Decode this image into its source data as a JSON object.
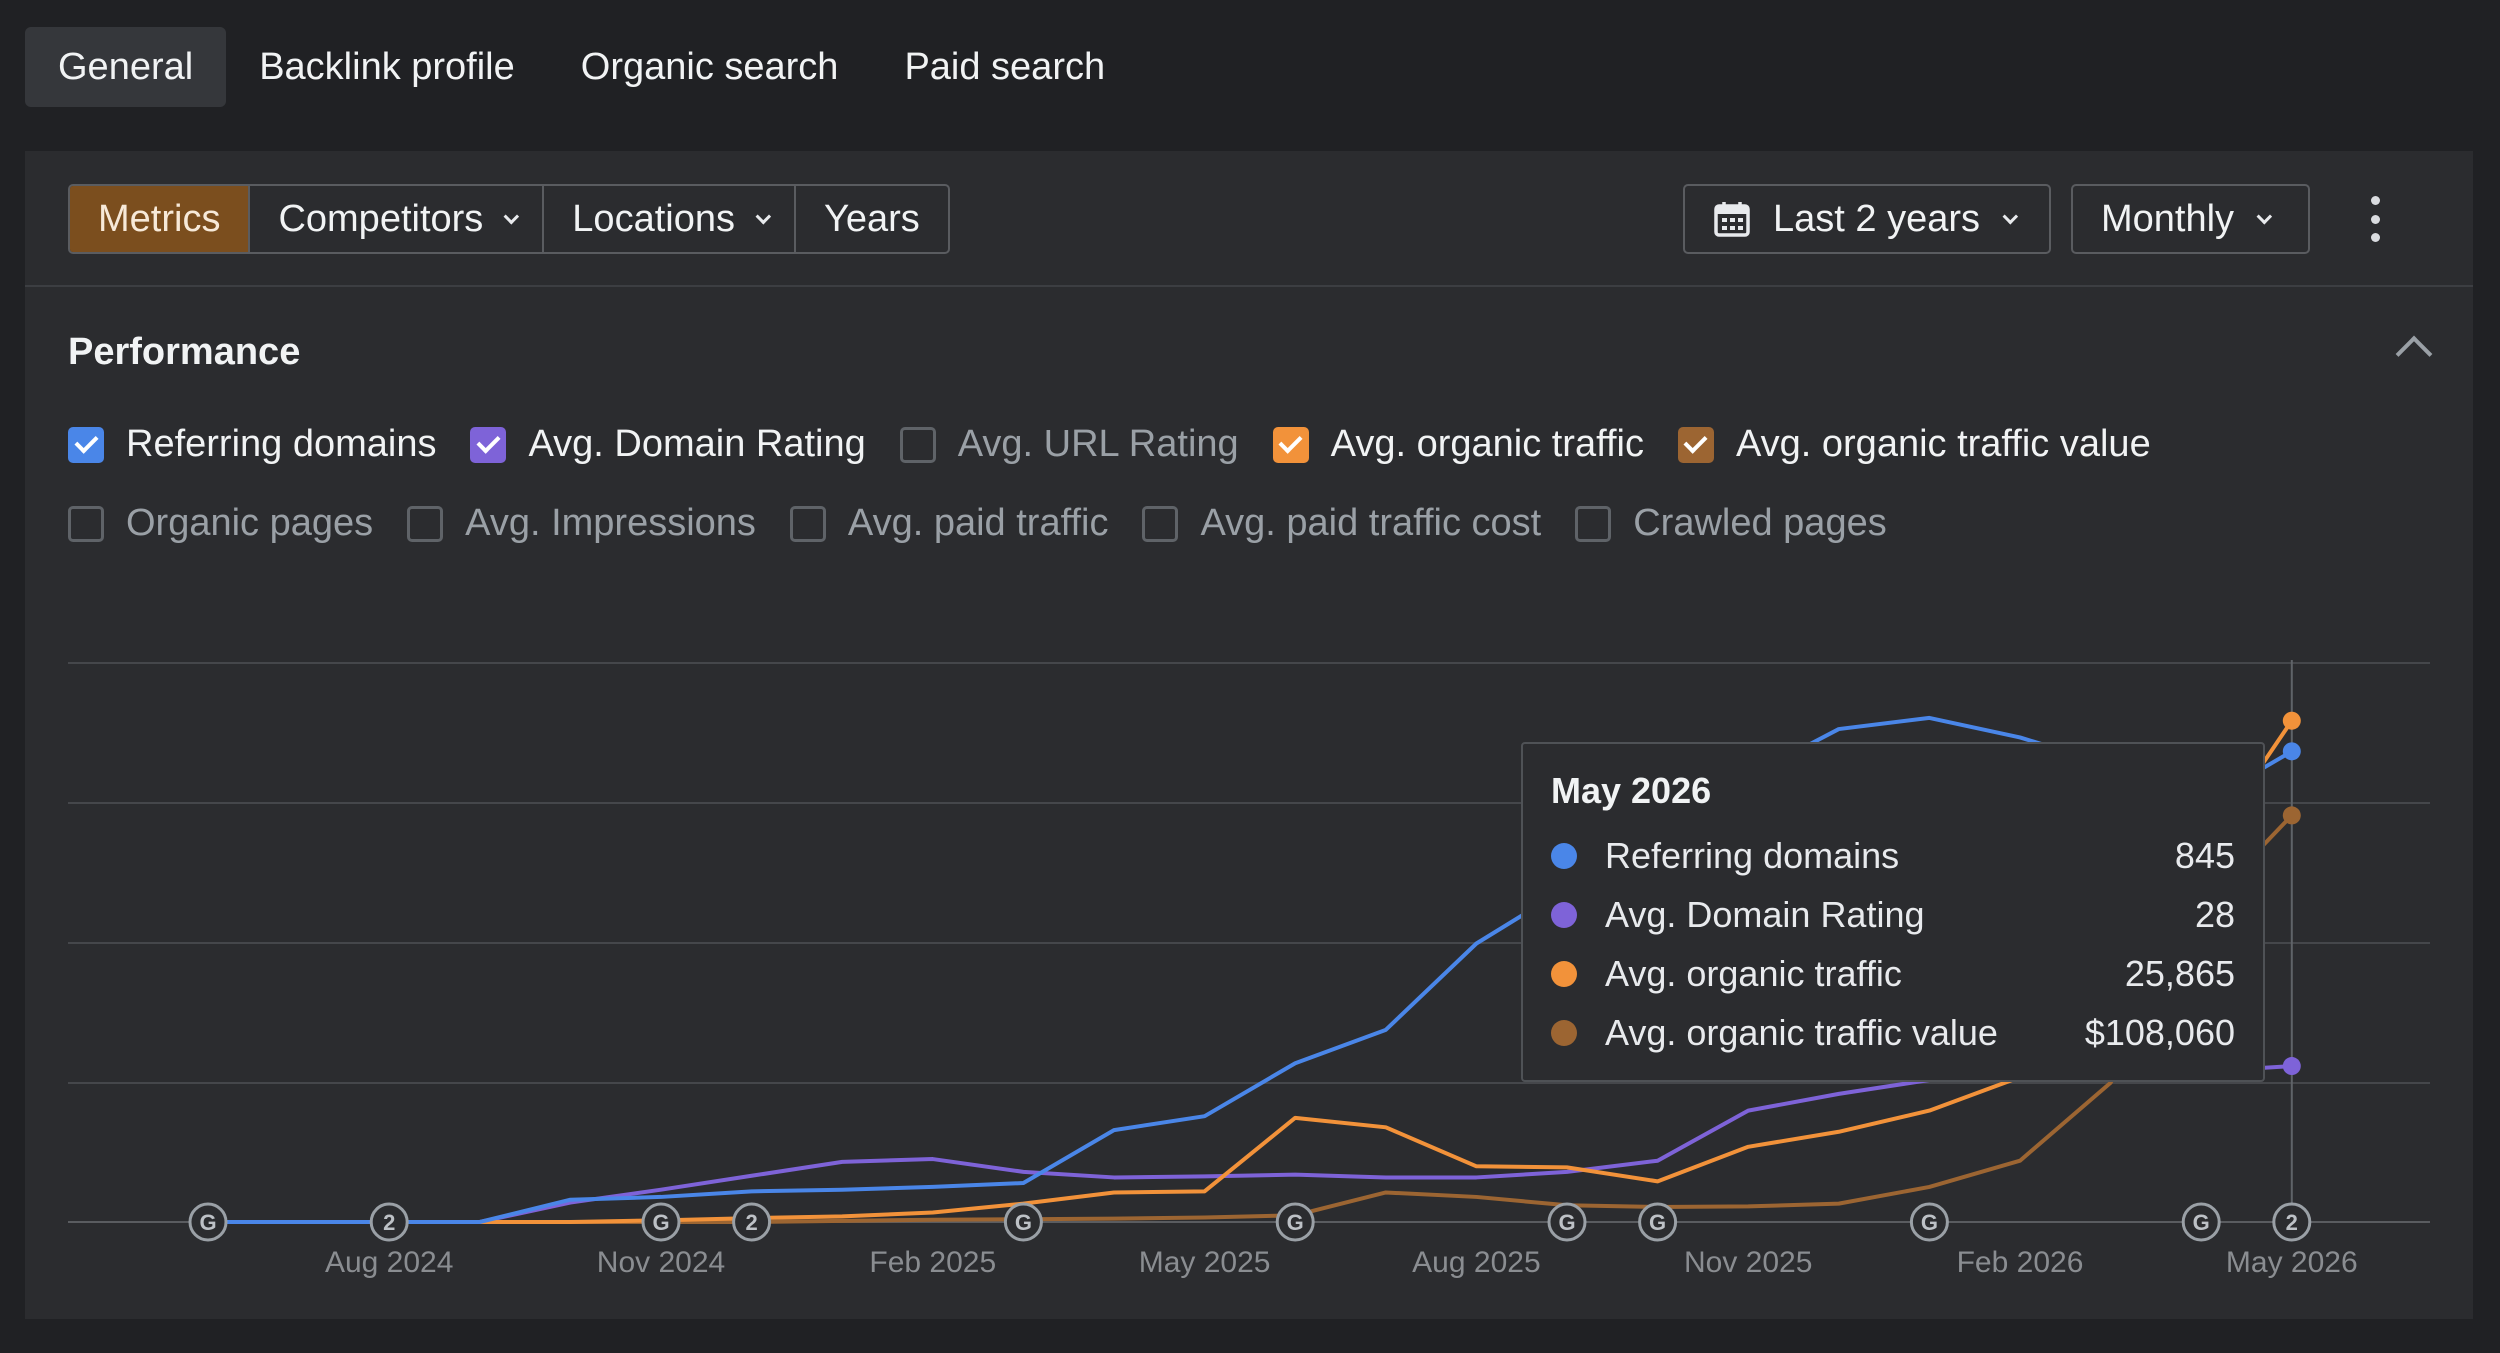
{
  "top_tabs": [
    {
      "label": "General",
      "active": true
    },
    {
      "label": "Backlink profile",
      "active": false
    },
    {
      "label": "Organic search",
      "active": false
    },
    {
      "label": "Paid search",
      "active": false
    }
  ],
  "toolbar": {
    "segments": [
      "Metrics",
      "Competitors",
      "Locations",
      "Years"
    ],
    "range_label": "Last 2 years",
    "interval_label": "Monthly"
  },
  "performance": {
    "title": "Performance",
    "metrics_row1": [
      {
        "label": "Referring domains",
        "checked": true,
        "color": "#4a86e8"
      },
      {
        "label": "Avg. Domain Rating",
        "checked": true,
        "color": "#7e63d8"
      },
      {
        "label": "Avg. URL Rating",
        "checked": false,
        "color": ""
      },
      {
        "label": "Avg. organic traffic",
        "checked": true,
        "color": "#f2923a"
      },
      {
        "label": "Avg. organic traffic value",
        "checked": true,
        "color": "#9c6532"
      }
    ],
    "metrics_row2": [
      {
        "label": "Organic pages",
        "checked": false
      },
      {
        "label": "Avg. Impressions",
        "checked": false
      },
      {
        "label": "Avg. paid traffic",
        "checked": false
      },
      {
        "label": "Avg. paid traffic cost",
        "checked": false
      },
      {
        "label": "Crawled pages",
        "checked": false
      }
    ]
  },
  "tooltip": {
    "title": "May 2026",
    "rows": [
      {
        "name": "Referring domains",
        "value": "845",
        "color": "#4a86e8"
      },
      {
        "name": "Avg. Domain Rating",
        "value": "28",
        "color": "#7e63d8"
      },
      {
        "name": "Avg. organic traffic",
        "value": "25,865",
        "color": "#f2923a"
      },
      {
        "name": "Avg. organic traffic value",
        "value": "$108,060",
        "color": "#9c6532"
      }
    ]
  },
  "chart_data": {
    "type": "line",
    "x": [
      "Jun 2024",
      "Jul 2024",
      "Aug 2024",
      "Sep 2024",
      "Oct 2024",
      "Nov 2024",
      "Dec 2024",
      "Jan 2025",
      "Feb 2025",
      "Mar 2025",
      "Apr 2025",
      "May 2025",
      "Jun 2025",
      "Jul 2025",
      "Aug 2025",
      "Sep 2025",
      "Oct 2025",
      "Nov 2025",
      "Dec 2025",
      "Jan 2026",
      "Feb 2026",
      "Mar 2026",
      "Apr 2026",
      "May 2026"
    ],
    "x_tick_labels": [
      "Aug 2024",
      "Nov 2024",
      "Feb 2025",
      "May 2025",
      "Aug 2025",
      "Nov 2025",
      "Feb 2026",
      "May 2026"
    ],
    "x_tick_months": [
      "Aug 2024",
      "Nov 2024",
      "Feb 2025",
      "May 2025",
      "Aug 2025",
      "Nov 2025",
      "Feb 2026",
      "May 2026"
    ],
    "grid": true,
    "legend": "checkbox row above chart",
    "series": [
      {
        "name": "Referring domains",
        "color": "#4a86e8",
        "norm": [
          0,
          0,
          0,
          0,
          0.04,
          0.045,
          0.055,
          0.058,
          0.063,
          0.07,
          0.165,
          0.19,
          0.285,
          0.345,
          0.5,
          0.6,
          0.7,
          0.8,
          0.885,
          0.905,
          0.87,
          0.82,
          0.75,
          0.845
        ]
      },
      {
        "name": "Avg. Domain Rating",
        "color": "#7e63d8",
        "norm": [
          0,
          0,
          0,
          0,
          0.035,
          0.058,
          0.083,
          0.108,
          0.113,
          0.09,
          0.08,
          0.082,
          0.085,
          0.08,
          0.08,
          0.09,
          0.11,
          0.2,
          0.23,
          0.255,
          0.265,
          0.27,
          0.27,
          0.28
        ]
      },
      {
        "name": "Avg. organic traffic",
        "color": "#f2923a",
        "norm": [
          0,
          0,
          0,
          0,
          0,
          0.003,
          0.007,
          0.01,
          0.017,
          0.033,
          0.053,
          0.055,
          0.187,
          0.17,
          0.1,
          0.098,
          0.073,
          0.135,
          0.162,
          0.2,
          0.26,
          0.43,
          0.66,
          0.9
        ]
      },
      {
        "name": "Avg. organic traffic value",
        "color": "#9c6532",
        "norm": [
          0,
          0,
          0,
          0,
          0,
          0,
          0,
          0.002,
          0.004,
          0.005,
          0.006,
          0.008,
          0.012,
          0.053,
          0.045,
          0.03,
          0.027,
          0.028,
          0.033,
          0.063,
          0.11,
          0.25,
          0.56,
          0.73
        ]
      }
    ],
    "tooltip_values_may_2026": {
      "Referring domains": 845,
      "Avg. Domain Rating": 28,
      "Avg. organic traffic": 25865,
      "Avg. organic traffic value": 108060
    },
    "event_markers": [
      {
        "month": "Jun 2024",
        "label": "G"
      },
      {
        "month": "Aug 2024",
        "label": "2"
      },
      {
        "month": "Nov 2024",
        "label": "G"
      },
      {
        "month": "Dec 2024",
        "label": "2"
      },
      {
        "month": "Mar 2025",
        "label": "G"
      },
      {
        "month": "Jun 2025",
        "label": "G"
      },
      {
        "month": "Sep 2025",
        "label": "G"
      },
      {
        "month": "Oct 2025",
        "label": "G"
      },
      {
        "month": "Jan 2026",
        "label": "G"
      },
      {
        "month": "Apr 2026",
        "label": "G"
      },
      {
        "month": "May 2026",
        "label": "2"
      }
    ]
  }
}
